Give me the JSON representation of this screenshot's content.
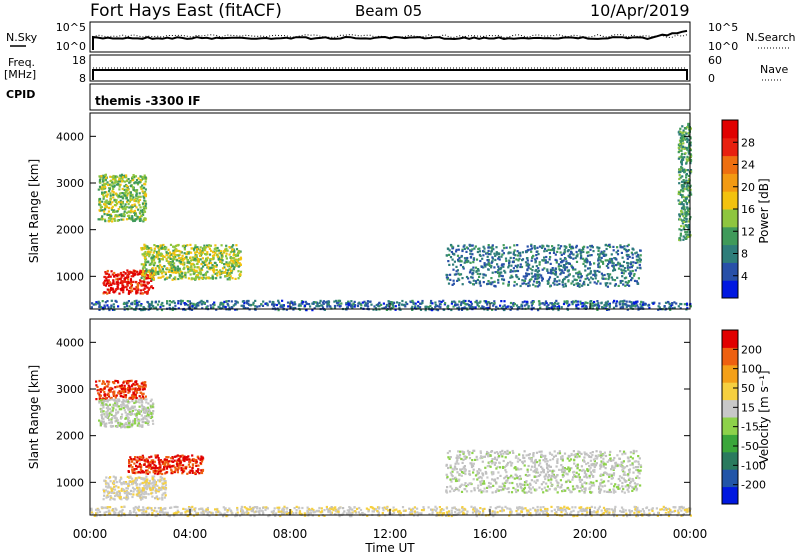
{
  "header": {
    "station": "Fort Hays East (fitACF)",
    "beam": "Beam 05",
    "date": "10/Apr/2019"
  },
  "top_panels": {
    "nsky": {
      "label": "N.Sky",
      "ticks": [
        "10^5",
        "10^0"
      ]
    },
    "nsearch": {
      "label": "N.Search",
      "ticks": [
        "10^5",
        "10^0"
      ]
    },
    "freq": {
      "label_line1": "Freq.",
      "label_line2": "[MHz]",
      "ticks": [
        "18",
        "8"
      ]
    },
    "nave": {
      "label": "Nave",
      "ticks": [
        "60",
        "0"
      ]
    },
    "cpid": {
      "label": "CPID",
      "mode": "themis -3300 IF"
    }
  },
  "colors": {
    "power_scale": [
      "#0018e0",
      "#2850a8",
      "#2e7d7a",
      "#3f9a5a",
      "#8ec63f",
      "#f2c20f",
      "#f39a12",
      "#ee6f10",
      "#e8200f",
      "#e00000"
    ],
    "velocity_scale": [
      "#0018e0",
      "#2255a8",
      "#2a7a5e",
      "#3aa63a",
      "#8dd24a",
      "#c8c8c8",
      "#f6d040",
      "#f4a018",
      "#ee6010",
      "#e00000"
    ],
    "ground_scatter": "#c0c0c0"
  },
  "chart_data": [
    {
      "type": "heatmap",
      "name": "power",
      "xlabel": "Time UT",
      "ylabel": "Slant Range [km]",
      "xlim": [
        0,
        24
      ],
      "ylim": [
        300,
        4500
      ],
      "x_ticks": [
        "00:00",
        "04:00",
        "08:00",
        "12:00",
        "16:00",
        "20:00",
        "00:00"
      ],
      "y_ticks": [
        "1000",
        "2000",
        "3000",
        "4000"
      ],
      "colorbar": {
        "label": "Power [dB]",
        "ticks": [
          "4",
          "8",
          "12",
          "16",
          "20",
          "24",
          "28"
        ],
        "range": [
          0,
          30
        ]
      },
      "regions": [
        {
          "t": [
            0.5,
            2.5
          ],
          "r": [
            650,
            1150
          ],
          "value": 27
        },
        {
          "t": [
            2.0,
            6.0
          ],
          "r": [
            950,
            1700
          ],
          "value": 14
        },
        {
          "t": [
            0.3,
            2.2
          ],
          "r": [
            2200,
            3200
          ],
          "value": 13
        },
        {
          "t": [
            14.2,
            22.0
          ],
          "r": [
            800,
            1700
          ],
          "value": 7
        },
        {
          "t": [
            0.0,
            24.0
          ],
          "r": [
            300,
            500
          ],
          "value": 6
        },
        {
          "t": [
            23.5,
            24.0
          ],
          "r": [
            1800,
            4300
          ],
          "value": 10
        }
      ]
    },
    {
      "type": "heatmap",
      "name": "velocity",
      "xlabel": "Time UT",
      "ylabel": "Slant Range [km]",
      "xlim": [
        0,
        24
      ],
      "ylim": [
        300,
        4500
      ],
      "x_ticks": [
        "00:00",
        "04:00",
        "08:00",
        "12:00",
        "16:00",
        "20:00",
        "00:00"
      ],
      "y_ticks": [
        "1000",
        "2000",
        "3000",
        "4000"
      ],
      "colorbar": {
        "label": "Velocity [m s⁻¹]",
        "ticks": [
          "200",
          "100",
          "50",
          "15",
          "-15",
          "-50",
          "-100",
          "-200"
        ],
        "range": [
          -250,
          250
        ]
      },
      "regions": [
        {
          "t": [
            0.5,
            3.0
          ],
          "r": [
            650,
            1150
          ],
          "value": 40
        },
        {
          "t": [
            1.5,
            4.5
          ],
          "r": [
            1200,
            1600
          ],
          "value": 200
        },
        {
          "t": [
            0.2,
            2.2
          ],
          "r": [
            2800,
            3200
          ],
          "value": 200
        },
        {
          "t": [
            0.3,
            2.5
          ],
          "r": [
            2200,
            2800
          ],
          "value": 0
        },
        {
          "t": [
            14.2,
            22.0
          ],
          "r": [
            800,
            1700
          ],
          "value": 0
        },
        {
          "t": [
            0.0,
            24.0
          ],
          "r": [
            300,
            500
          ],
          "value": 40
        }
      ]
    }
  ]
}
